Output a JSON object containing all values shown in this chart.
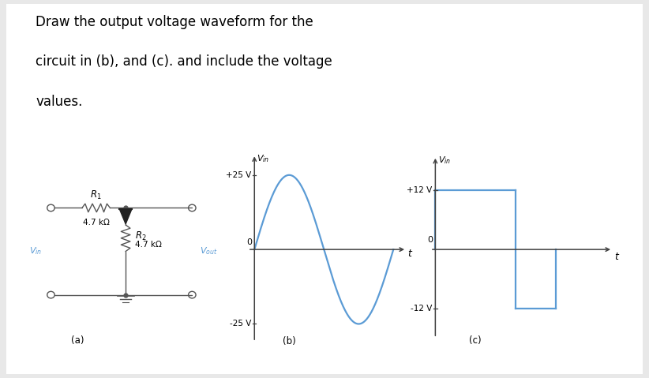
{
  "title_line1": "Draw the output voltage waveform for the",
  "title_line2": "circuit in (b), and (c). and include the voltage",
  "title_line3": "values.",
  "bg_color": "#e8e8e8",
  "card_color": "#ffffff",
  "wave_color": "#5b9bd5",
  "axis_color": "#404040",
  "circuit_color": "#555555",
  "label_color": "#5b9bd5",
  "text_color": "#000000",
  "sine_amplitude": 25,
  "square_amplitude": 12,
  "label_b": "(b)",
  "label_c": "(c)",
  "label_a": "(a)"
}
